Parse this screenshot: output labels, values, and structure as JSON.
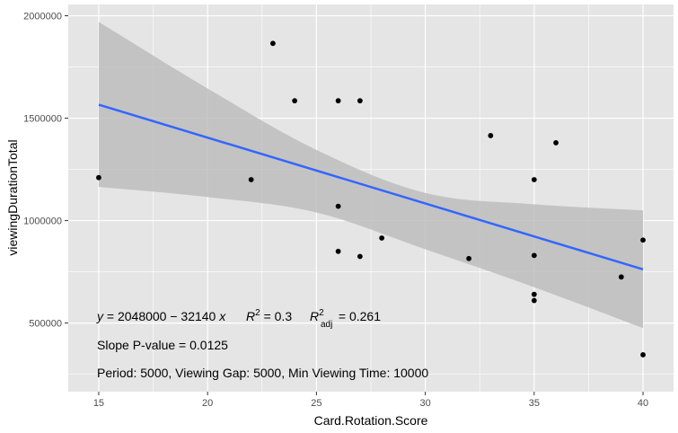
{
  "chart_data": {
    "type": "scatter",
    "title": "",
    "xlabel": "Card.Rotation.Score",
    "ylabel": "viewingDurationTotal",
    "xlim": [
      13.6,
      41.4
    ],
    "ylim": [
      165000,
      2055000
    ],
    "x_ticks": [
      15,
      20,
      25,
      30,
      35,
      40
    ],
    "x_tick_labels": [
      "15",
      "20",
      "25",
      "30",
      "35",
      "40"
    ],
    "y_ticks": [
      500000,
      1000000,
      1500000,
      2000000
    ],
    "y_tick_labels": [
      "500000",
      "1000000",
      "1500000",
      "2000000"
    ],
    "grid": true,
    "legend": "none",
    "colors": {
      "panel_background": "#e5e5e5",
      "grid": "#ffffff",
      "points": "#000000",
      "fit_line": "#3366ff",
      "confidence_band": "#bdbdbd"
    },
    "points": [
      {
        "x": 15,
        "y": 1210000
      },
      {
        "x": 22,
        "y": 1200000
      },
      {
        "x": 23,
        "y": 1865000
      },
      {
        "x": 24,
        "y": 1585000
      },
      {
        "x": 26,
        "y": 1585000
      },
      {
        "x": 26,
        "y": 1070000
      },
      {
        "x": 26,
        "y": 850000
      },
      {
        "x": 27,
        "y": 1585000
      },
      {
        "x": 27,
        "y": 825000
      },
      {
        "x": 28,
        "y": 915000
      },
      {
        "x": 32,
        "y": 815000
      },
      {
        "x": 33,
        "y": 1415000
      },
      {
        "x": 35,
        "y": 1200000
      },
      {
        "x": 35,
        "y": 830000
      },
      {
        "x": 35,
        "y": 640000
      },
      {
        "x": 35,
        "y": 610000
      },
      {
        "x": 36,
        "y": 1380000
      },
      {
        "x": 39,
        "y": 725000
      },
      {
        "x": 40,
        "y": 905000
      },
      {
        "x": 40,
        "y": 345000
      }
    ],
    "fit_line": {
      "x": [
        15,
        40
      ],
      "y": [
        1566000,
        762000
      ]
    },
    "confidence_band": {
      "x": [
        15,
        20,
        25,
        30,
        35,
        40
      ],
      "upper": [
        1970000,
        1645000,
        1345000,
        1135000,
        1080000,
        1050000
      ],
      "lower": [
        1165000,
        1115000,
        1040000,
        860000,
        675000,
        475000
      ]
    },
    "annotations": {
      "equation_y": "y",
      "equation_rhs": " = 2048000 − 32140 ",
      "equation_x": "x",
      "r2_R": "R",
      "r2_exp": "2",
      "r2_val": " = 0.3",
      "radj_R": "R",
      "radj_exp": "2",
      "radj_sub": "adj",
      "radj_val": " = 0.261",
      "slope_p": "Slope P-value = 0.0125",
      "period": "Period: 5000, Viewing Gap: 5000, Min Viewing Time: 10000"
    }
  }
}
